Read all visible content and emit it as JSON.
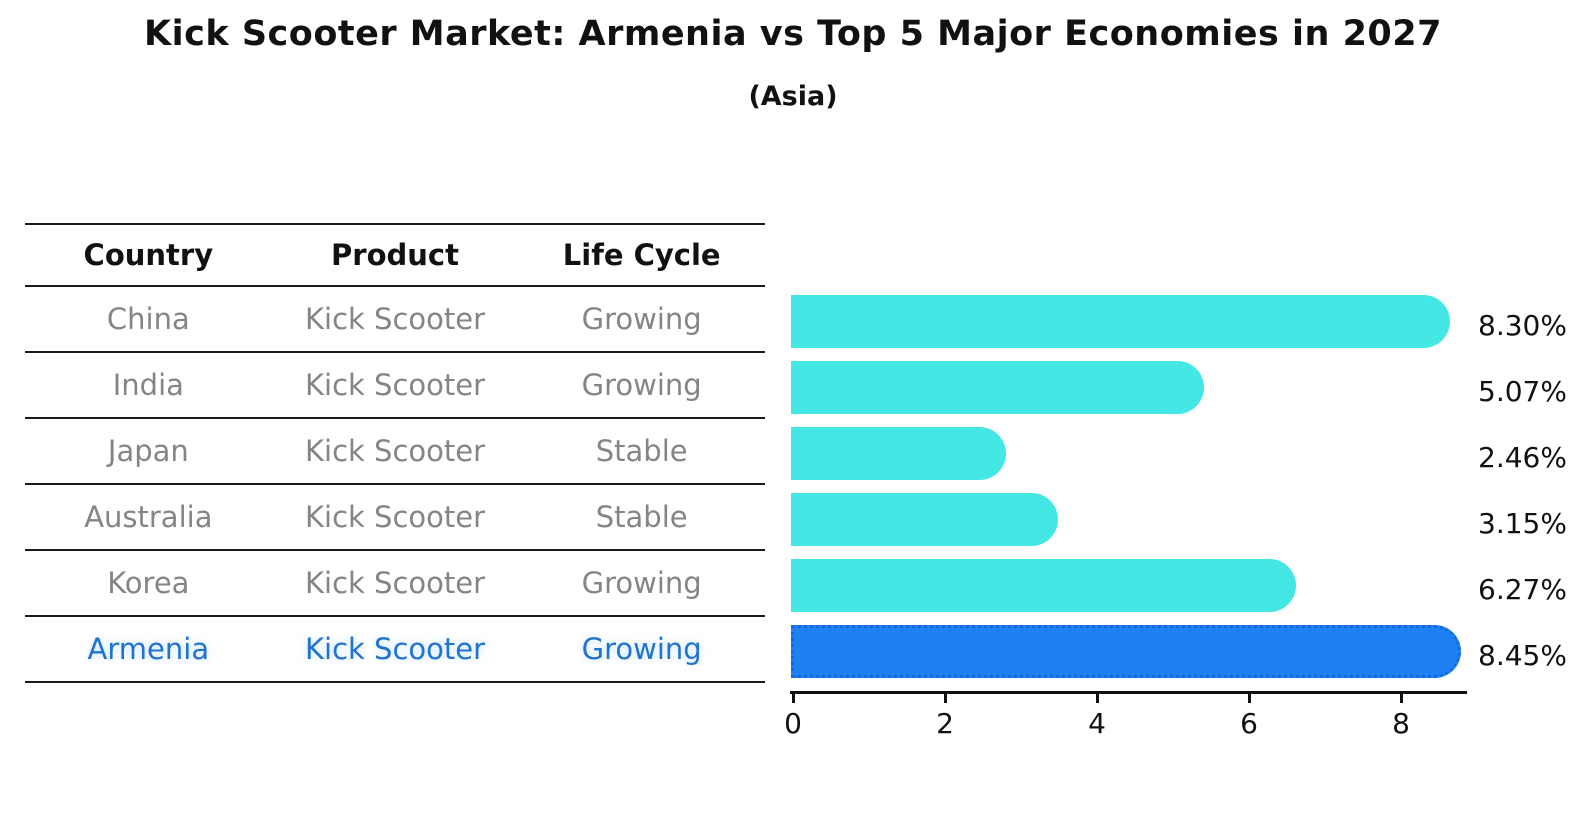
{
  "title": "Kick Scooter Market: Armenia vs Top 5 Major Economies in 2027",
  "subtitle": "(Asia)",
  "table": {
    "headers": [
      "Country",
      "Product",
      "Life Cycle"
    ],
    "rows": [
      {
        "country": "China",
        "product": "Kick Scooter",
        "life_cycle": "Growing"
      },
      {
        "country": "India",
        "product": "Kick Scooter",
        "life_cycle": "Growing"
      },
      {
        "country": "Japan",
        "product": "Kick Scooter",
        "life_cycle": "Stable"
      },
      {
        "country": "Australia",
        "product": "Kick Scooter",
        "life_cycle": "Stable"
      },
      {
        "country": "Korea",
        "product": "Kick Scooter",
        "life_cycle": "Growing"
      },
      {
        "country": "Armenia",
        "product": "Kick Scooter",
        "life_cycle": "Growing"
      }
    ],
    "highlight_row": "Armenia"
  },
  "chart_data": {
    "type": "bar",
    "orientation": "horizontal",
    "title": "Kick Scooter Market: Armenia vs Top 5 Major Economies in 2027",
    "subtitle": "(Asia)",
    "categories": [
      "China",
      "India",
      "Japan",
      "Australia",
      "Korea",
      "Armenia"
    ],
    "values": [
      8.3,
      5.07,
      2.46,
      3.15,
      6.27,
      8.45
    ],
    "value_labels": [
      "8.30%",
      "5.07%",
      "2.46%",
      "3.15%",
      "6.27%",
      "8.45%"
    ],
    "x_ticks": [
      "0",
      "2",
      "4",
      "6",
      "8"
    ],
    "x_tick_values": [
      0,
      2,
      4,
      6,
      8
    ],
    "xlim": [
      0,
      8.9
    ],
    "grid": false,
    "legend": false,
    "bar_color": "#44e7e4",
    "highlight_color": "#1e80f2",
    "highlight_edge_color": "#1368e0",
    "highlight_index": 5
  },
  "colors": {
    "background": "#ffffff",
    "table_line": "#1a1a1a",
    "header_text": "#111111",
    "row_text": "#858585",
    "highlight_text": "#2273cf",
    "axis": "#111111"
  }
}
